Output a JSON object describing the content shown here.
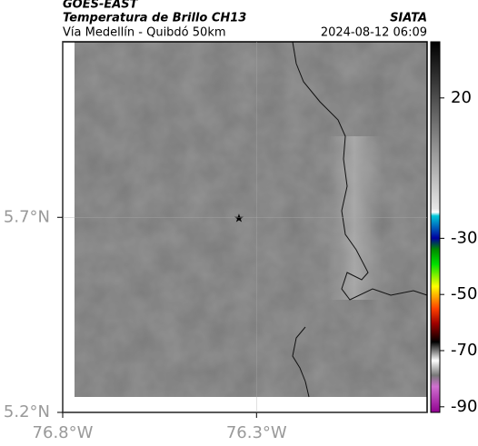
{
  "header": {
    "title": "GOES-EAST",
    "subtitle": "Temperatura de Brillo CH13",
    "region": "Vía Medellín - Quibdó 50km",
    "source": "SIATA",
    "timestamp": "2024-08-12 06:09"
  },
  "map": {
    "xlim": [
      -76.8,
      -75.86
    ],
    "ylim": [
      5.2,
      6.15
    ],
    "xticks": [
      {
        "value": -76.8,
        "label": "76.8°W"
      },
      {
        "value": -76.3,
        "label": "76.3°W"
      }
    ],
    "yticks": [
      {
        "value": 5.2,
        "label": "5.2°N"
      },
      {
        "value": 5.7,
        "label": "5.7°N"
      }
    ]
  },
  "colorbar": {
    "lim": [
      -92,
      40
    ],
    "ticks": [
      20,
      -30,
      -50,
      -70,
      -90
    ]
  }
}
